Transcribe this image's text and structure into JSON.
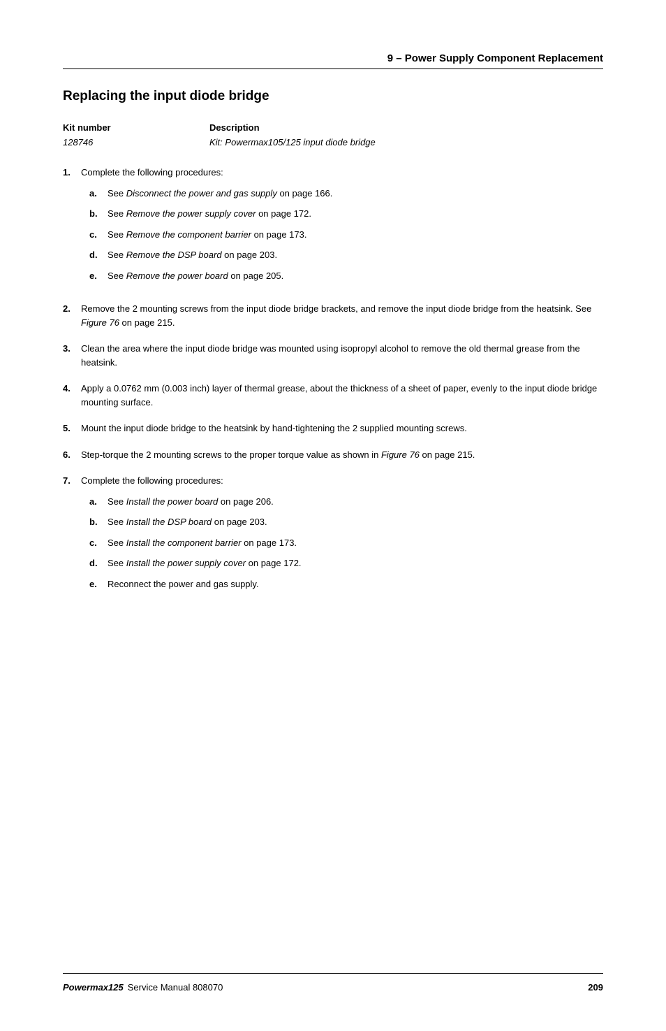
{
  "header": {
    "section_label": "9 – Power Supply Component Replacement"
  },
  "heading": "Replacing the input diode bridge",
  "kit_table": {
    "col1_header": "Kit number",
    "col2_header": "Description",
    "col1_value": "128746",
    "col2_value": "Kit: Powermax105/125 input diode bridge"
  },
  "steps": [
    {
      "num": "1.",
      "text": "Complete the following procedures:",
      "subs": [
        {
          "letter": "a.",
          "prefix": "See ",
          "italic": "Disconnect the power and gas supply",
          "suffix": " on page 166."
        },
        {
          "letter": "b.",
          "prefix": "See ",
          "italic": "Remove the power supply cover",
          "suffix": " on page 172."
        },
        {
          "letter": "c.",
          "prefix": "See ",
          "italic": "Remove the component barrier",
          "suffix": " on page 173."
        },
        {
          "letter": "d.",
          "prefix": "See ",
          "italic": "Remove the DSP board",
          "suffix": " on page 203."
        },
        {
          "letter": "e.",
          "prefix": "See ",
          "italic": "Remove the power board",
          "suffix": " on page 205."
        }
      ]
    },
    {
      "num": "2.",
      "text_parts": [
        {
          "t": "Remove the 2 mounting screws from the input diode bridge brackets, and remove the input diode bridge from the heatsink. See "
        },
        {
          "t": "Figure 76",
          "italic": true
        },
        {
          "t": " on page 215."
        }
      ]
    },
    {
      "num": "3.",
      "text": "Clean the area where the input diode bridge was mounted using isopropyl alcohol to remove the old thermal grease from the heatsink."
    },
    {
      "num": "4.",
      "text": "Apply a 0.0762 mm (0.003 inch) layer of thermal grease, about the thickness of a sheet of paper, evenly to the input diode bridge mounting surface."
    },
    {
      "num": "5.",
      "text": "Mount the input diode bridge to the heatsink by hand-tightening the 2 supplied mounting screws."
    },
    {
      "num": "6.",
      "text_parts": [
        {
          "t": "Step-torque the 2 mounting screws to the proper torque value as shown in "
        },
        {
          "t": "Figure 76",
          "italic": true
        },
        {
          "t": " on page 215."
        }
      ]
    },
    {
      "num": "7.",
      "text": "Complete the following procedures:",
      "subs": [
        {
          "letter": "a.",
          "prefix": "See ",
          "italic": "Install the power board",
          "suffix": " on page 206."
        },
        {
          "letter": "b.",
          "prefix": "See ",
          "italic": "Install the DSP board",
          "suffix": " on page 203."
        },
        {
          "letter": "c.",
          "prefix": "See ",
          "italic": "Install the component barrier",
          "suffix": " on page 173."
        },
        {
          "letter": "d.",
          "prefix": "See ",
          "italic": "Install the power supply cover",
          "suffix": " on page 172."
        },
        {
          "letter": "e.",
          "prefix": "",
          "plain": "Reconnect the power and gas supply.",
          "suffix": ""
        }
      ]
    }
  ],
  "footer": {
    "product": "Powermax125",
    "manual": "Service Manual  808070",
    "page": "209"
  }
}
